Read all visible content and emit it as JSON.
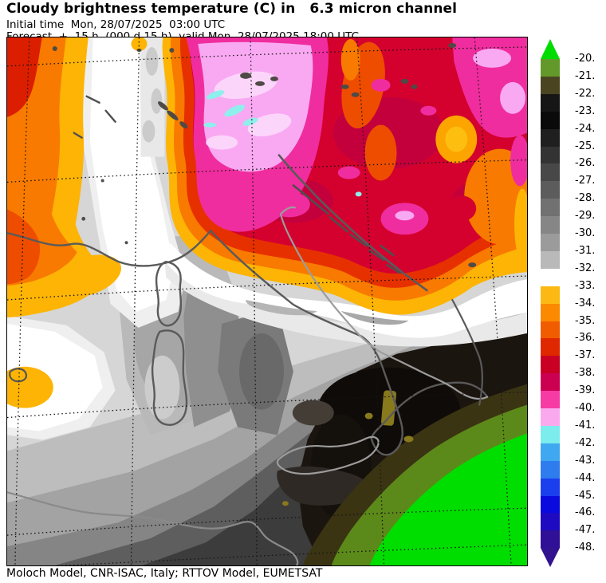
{
  "header": {
    "title": "Cloudy brightness temperature (C) in   6.3 micron channel",
    "initial_time": "Initial time  Mon, 28/07/2025  03:00 UTC",
    "forecast_line": "Forecast  +  15 h  (000 d 15 h)  valid Mon, 28/07/2025 18:00 UTC"
  },
  "footer": {
    "credit": "Moloch Model, CNR-ISAC, Italy; RTTOV Model, EUMETSAT"
  },
  "colorbar": {
    "units": "C",
    "labels": [
      "-20.",
      "-21.",
      "-22.",
      "-23.",
      "-24.",
      "-25.",
      "-26.",
      "-27.",
      "-28.",
      "-29.",
      "-30.",
      "-31.",
      "-32.",
      "-33.",
      "-34.",
      "-35.",
      "-36.",
      "-37.",
      "-38.",
      "-39.",
      "-40.",
      "-41.",
      "-42.",
      "-43.",
      "-44.",
      "-45.",
      "-46.",
      "-47.",
      "-48."
    ],
    "cell_colors": [
      "#63992B",
      "#4A4420",
      "#161616",
      "#0A0A0A",
      "#1F1F1F",
      "#333333",
      "#484848",
      "#5C5C5C",
      "#717171",
      "#868686",
      "#9B9B9B",
      "#B9B9B9",
      "#FFFFFF",
      "#FDB913",
      "#FB8A00",
      "#F25C00",
      "#E02800",
      "#C90024",
      "#CB0051",
      "#F73BA4",
      "#FBA9EF",
      "#7CECEC",
      "#3FA8F0",
      "#2E7CEE",
      "#1C3FEE",
      "#0A0ADF",
      "#1E0AC0",
      "#2F1096"
    ],
    "over_color": "#00DC00",
    "under_color": "#32128F"
  },
  "map": {
    "palette": {
      "amber": "#FDB404",
      "orange": "#F87A00",
      "vermilion": "#EE4D00",
      "red": "#DC1E00",
      "crimson": "#D4012E",
      "magenta": "#F02D9E",
      "pale_pink": "#F9A9F2",
      "cyan_fleck": "#8FEFEC",
      "dark_cloudfree": "#1B1510",
      "bright_green": "#00DE00",
      "olive": "#5C8A1A",
      "coastline_gray": "#5A5A5A"
    }
  }
}
